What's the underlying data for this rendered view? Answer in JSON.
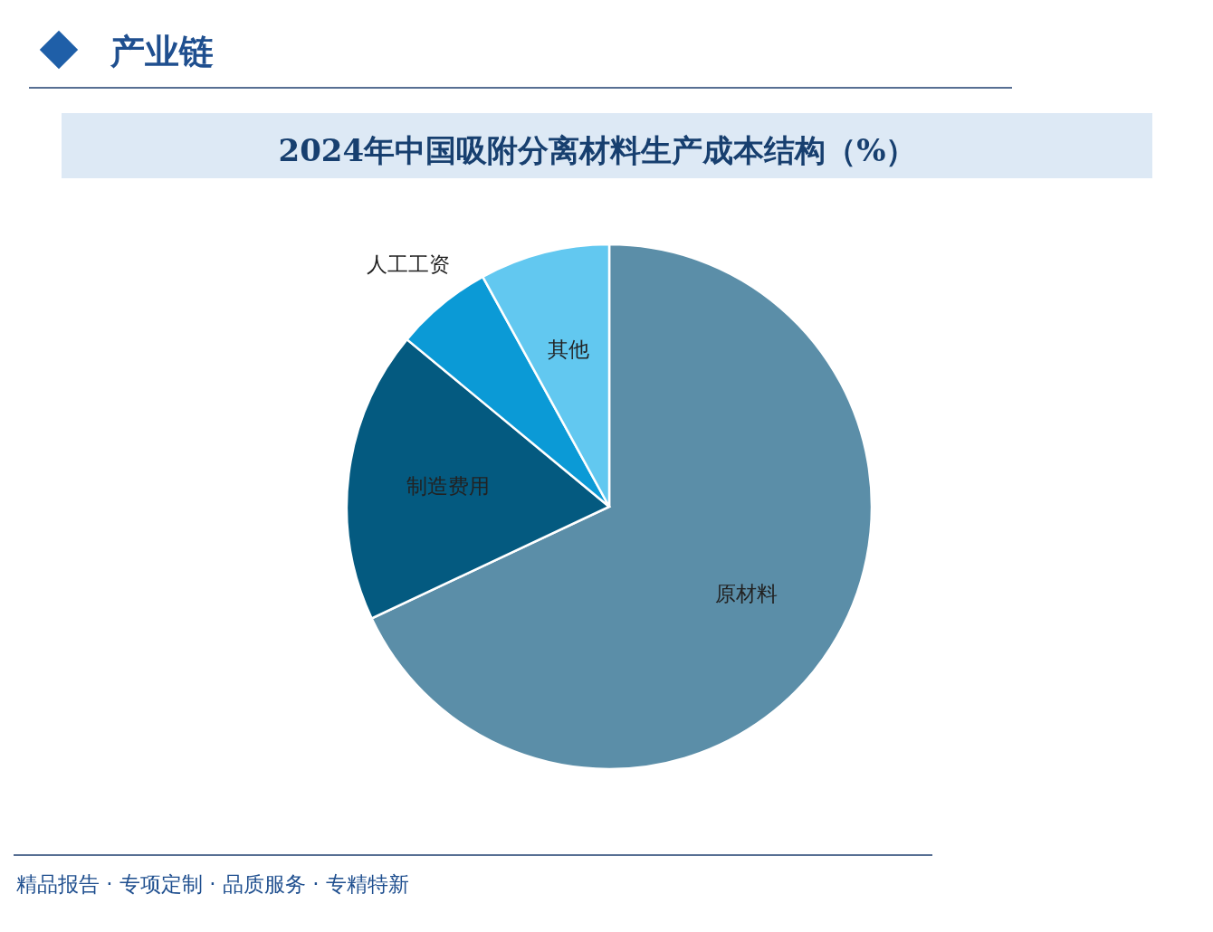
{
  "chart_data": {
    "type": "pie",
    "title": "2024年中国吸附分离材料生产成本结构（%）",
    "categories": [
      "原材料",
      "制造费用",
      "人工工资",
      "其他"
    ],
    "values": [
      68,
      18,
      6,
      8
    ],
    "colors": [
      "#5b8ea8",
      "#045a80",
      "#0b9ad6",
      "#62c8f0"
    ],
    "annotations": [
      "产业链",
      "精品报告 · 专项定制 · 品质服务 · 专精特新"
    ]
  }
}
